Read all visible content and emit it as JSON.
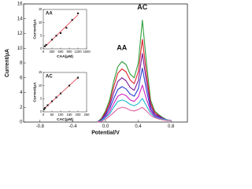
{
  "chart_data": [
    {
      "type": "line",
      "x_label": "Potential/V",
      "y_label": "Current/μA",
      "x": [
        -0.1,
        -0.05,
        0.0,
        0.05,
        0.1,
        0.15,
        0.2,
        0.25,
        0.3,
        0.35,
        0.4,
        0.45,
        0.5,
        0.55,
        0.6,
        0.65,
        0.7,
        0.75,
        0.8
      ],
      "series": [
        {
          "color": "#2e9e3a",
          "values": [
            0,
            0.5,
            1.5,
            3,
            5.5,
            7.5,
            8.2,
            7.8,
            6.5,
            6,
            8,
            13.8,
            8,
            3,
            1.5,
            1,
            0.6,
            0.3,
            0.2
          ]
        },
        {
          "color": "#e0202a",
          "values": [
            0,
            0.4,
            1.3,
            2.6,
            4.8,
            6.6,
            7.2,
            6.8,
            5.7,
            5.2,
            6.8,
            11.2,
            6.5,
            2.6,
            1.3,
            0.9,
            0.5,
            0.3,
            0.2
          ]
        },
        {
          "color": "#7a1a9a",
          "values": [
            0,
            0.3,
            1.1,
            2.2,
            4,
            5.5,
            6,
            5.6,
            4.7,
            4.3,
            5.6,
            9.3,
            5.4,
            2.2,
            1.1,
            0.8,
            0.5,
            0.3,
            0.2
          ]
        },
        {
          "color": "#2a3fd0",
          "values": [
            0,
            0.3,
            0.9,
            1.8,
            3.2,
            4.4,
            4.8,
            4.5,
            3.8,
            3.5,
            4.5,
            7.3,
            4.3,
            1.8,
            0.9,
            0.7,
            0.4,
            0.3,
            0.2
          ]
        },
        {
          "color": "#d020c0",
          "values": [
            0,
            0.2,
            0.7,
            1.4,
            2.5,
            3.5,
            3.8,
            3.6,
            3,
            2.8,
            3.4,
            5,
            3.1,
            1.5,
            0.8,
            0.6,
            0.4,
            0.3,
            0.2
          ]
        },
        {
          "color": "#20b8d0",
          "values": [
            0,
            0.2,
            0.6,
            1.1,
            2,
            2.8,
            3,
            2.8,
            2.4,
            2.2,
            2.5,
            3.2,
            2.2,
            1.2,
            0.7,
            0.5,
            0.4,
            0.3,
            0.2
          ]
        },
        {
          "color": "#e060a0",
          "values": [
            0,
            0.1,
            0.4,
            0.8,
            1.3,
            1.8,
            2,
            1.9,
            1.6,
            1.5,
            1.7,
            2,
            1.5,
            0.9,
            0.6,
            0.4,
            0.3,
            0.2,
            0.2
          ]
        }
      ],
      "annotations": [
        "AA",
        "AC"
      ],
      "xlim": [
        -1.0,
        1.0
      ],
      "xticks": [
        -0.8,
        -0.4,
        {
          "value": 0,
          "label": "0.0"
        },
        0.4,
        0.8
      ],
      "ylim": [
        0,
        16
      ],
      "yticks": [
        0,
        2,
        4,
        6,
        8,
        10,
        12,
        14,
        16
      ]
    },
    {
      "type": "scatter",
      "title": "AA",
      "x_label": "CAA(μM)",
      "y_label": "Current/μA",
      "x": [
        50,
        100,
        300,
        450,
        600,
        800,
        1000,
        1200
      ],
      "values": [
        1,
        1.5,
        3.5,
        5,
        6,
        8,
        11,
        13.5
      ],
      "color": "#222222",
      "trendline": true,
      "trend_color": "#e0202a",
      "xlim": [
        0,
        1500
      ],
      "xticks": [
        0,
        300,
        600,
        900,
        1200,
        1500
      ],
      "ylim": [
        0,
        15
      ],
      "yticks": [
        0,
        5,
        10,
        15
      ]
    },
    {
      "type": "scatter",
      "title": "AC",
      "x_label": "CAC(μM)",
      "y_label": "Current/μA",
      "x": [
        5,
        10,
        25,
        50,
        75,
        100,
        150,
        200
      ],
      "values": [
        1,
        1.5,
        2.5,
        4,
        5.5,
        7,
        10,
        13
      ],
      "color": "#222222",
      "trendline": true,
      "trend_color": "#e0202a",
      "xlim": [
        0,
        250
      ],
      "xticks": [
        0,
        50,
        100,
        150,
        200,
        250
      ],
      "ylim": [
        0,
        15
      ],
      "yticks": [
        0,
        5,
        10,
        15
      ]
    }
  ]
}
